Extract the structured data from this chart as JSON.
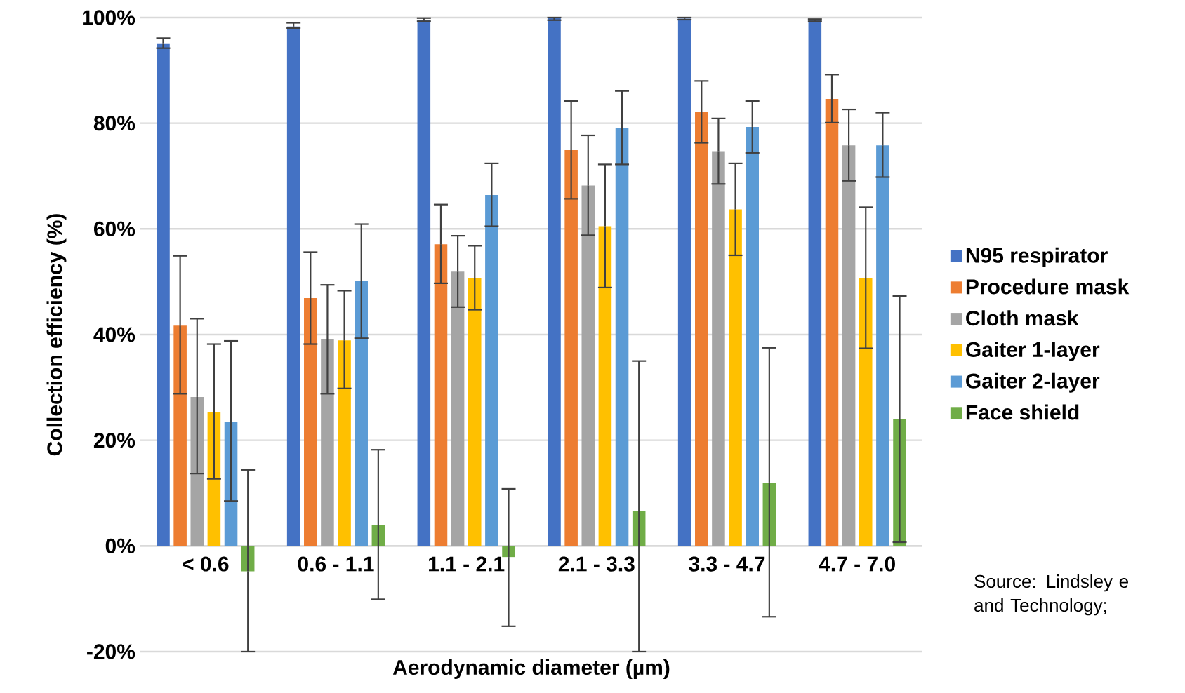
{
  "chart_data": {
    "type": "bar",
    "xlabel": "Aerodynamic diameter (µm)",
    "ylabel": "Collection efficiency (%)",
    "categories": [
      "< 0.6",
      "0.6 - 1.1",
      "1.1 - 2.1",
      "2.1 - 3.3",
      "3.3 - 4.7",
      "4.7 - 7.0"
    ],
    "series": [
      {
        "name": "N95 respirator",
        "color": "#4472c4",
        "values": [
          95.0,
          98.3,
          99.6,
          99.9,
          99.8,
          99.5
        ],
        "errors": [
          [
            94.2,
            96.1
          ],
          [
            98.0,
            99.0
          ],
          [
            99.3,
            99.9
          ],
          [
            99.5,
            100
          ],
          [
            99.6,
            100
          ],
          [
            99.3,
            99.7
          ]
        ]
      },
      {
        "name": "Procedure mask",
        "color": "#ed7d31",
        "values": [
          41.7,
          46.9,
          57.1,
          74.9,
          82.1,
          84.6
        ],
        "errors": [
          [
            28.8,
            54.9
          ],
          [
            38.2,
            55.6
          ],
          [
            49.7,
            64.6
          ],
          [
            65.7,
            84.2
          ],
          [
            76.3,
            88.0
          ],
          [
            80.1,
            89.2
          ]
        ]
      },
      {
        "name": "Cloth mask",
        "color": "#a5a5a5",
        "values": [
          28.2,
          39.2,
          51.9,
          68.2,
          74.7,
          75.8
        ],
        "errors": [
          [
            13.7,
            43.0
          ],
          [
            28.8,
            49.4
          ],
          [
            45.2,
            58.7
          ],
          [
            58.8,
            77.7
          ],
          [
            68.5,
            80.9
          ],
          [
            69.1,
            82.6
          ]
        ]
      },
      {
        "name": "Gaiter 1-layer",
        "color": "#ffc000",
        "values": [
          25.3,
          38.9,
          50.7,
          60.5,
          63.7,
          50.7
        ],
        "errors": [
          [
            12.7,
            38.2
          ],
          [
            29.8,
            48.3
          ],
          [
            44.7,
            56.8
          ],
          [
            48.9,
            72.2
          ],
          [
            55.0,
            72.4
          ],
          [
            37.4,
            64.1
          ]
        ]
      },
      {
        "name": "Gaiter 2-layer",
        "color": "#5b9bd5",
        "values": [
          23.5,
          50.2,
          66.4,
          79.1,
          79.3,
          75.8
        ],
        "errors": [
          [
            8.5,
            38.8
          ],
          [
            39.3,
            60.9
          ],
          [
            60.5,
            72.4
          ],
          [
            72.2,
            86.1
          ],
          [
            74.4,
            84.2
          ],
          [
            69.8,
            82.0
          ]
        ]
      },
      {
        "name": "Face shield",
        "color": "#70ad47",
        "values": [
          -4.8,
          4.0,
          -2.1,
          6.6,
          12.0,
          24.0
        ],
        "errors": [
          [
            -20,
            14.4
          ],
          [
            -10.1,
            18.2
          ],
          [
            -15.2,
            10.8
          ],
          [
            -20,
            35.0
          ],
          [
            -13.4,
            37.5
          ],
          [
            0.7,
            47.3
          ]
        ]
      }
    ],
    "ylim": [
      -20,
      100
    ],
    "yticks": [
      {
        "value": -20,
        "label": "-20%"
      },
      {
        "value": 0,
        "label": "0%"
      },
      {
        "value": 20,
        "label": "20%"
      },
      {
        "value": 40,
        "label": "40%"
      },
      {
        "value": 60,
        "label": "60%"
      },
      {
        "value": 80,
        "label": "80%"
      },
      {
        "value": 100,
        "label": "100%"
      }
    ],
    "grid": "y",
    "legend": "right",
    "annotations": [
      "Source: Lindsley e and Technology;"
    ]
  }
}
